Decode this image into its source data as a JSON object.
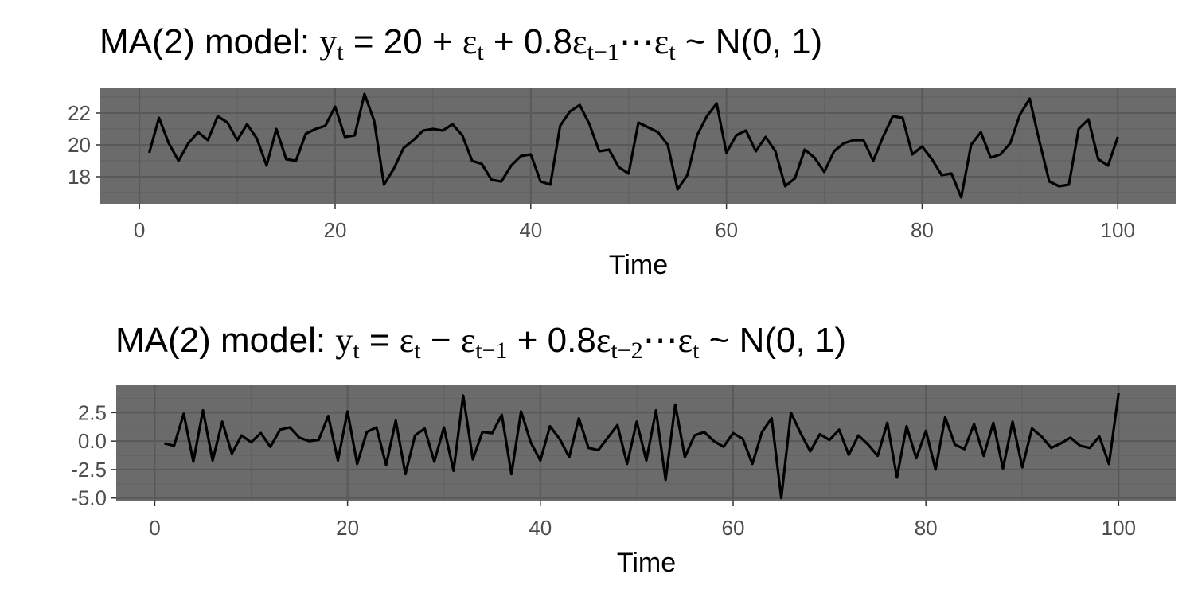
{
  "chart_data": [
    {
      "type": "line",
      "title_parts": {
        "prefix": "MA(2) model: ",
        "y": "y",
        "y_sub": "t",
        "rhs1": " = 20 + ",
        "e1": "ε",
        "e1_sub": "t",
        "rhs2": " + 0.8",
        "e2": "ε",
        "e2_sub": "t−1",
        "dots": "⋯",
        "e3": "ε",
        "e3_sub": "t",
        "dist": " ~ N(0, 1)"
      },
      "xlabel": "Time",
      "ylabel": "",
      "xlim": [
        -4,
        106
      ],
      "ylim": [
        16.3,
        23.6
      ],
      "x_ticks": [
        0,
        20,
        40,
        60,
        80,
        100
      ],
      "x_tick_labels": [
        "0",
        "20",
        "40",
        "60",
        "80",
        "100"
      ],
      "y_ticks": [
        18,
        20,
        22
      ],
      "y_tick_labels": [
        "18",
        "20",
        "22"
      ],
      "grid": true,
      "panel_color": "#6b6b6b",
      "line_color": "#000000",
      "x": [
        1,
        2,
        3,
        4,
        5,
        6,
        7,
        8,
        9,
        10,
        11,
        12,
        13,
        14,
        15,
        16,
        17,
        18,
        19,
        20,
        21,
        22,
        23,
        24,
        25,
        26,
        27,
        28,
        29,
        30,
        31,
        32,
        33,
        34,
        35,
        36,
        37,
        38,
        39,
        40,
        41,
        42,
        43,
        44,
        45,
        46,
        47,
        48,
        49,
        50,
        51,
        52,
        53,
        54,
        55,
        56,
        57,
        58,
        59,
        60,
        61,
        62,
        63,
        64,
        65,
        66,
        67,
        68,
        69,
        70,
        71,
        72,
        73,
        74,
        75,
        76,
        77,
        78,
        79,
        80,
        81,
        82,
        83,
        84,
        85,
        86,
        87,
        88,
        89,
        90,
        91,
        92,
        93,
        94,
        95,
        96,
        97,
        98,
        99,
        100
      ],
      "values": [
        19.5,
        21.7,
        20.1,
        19.0,
        20.1,
        20.8,
        20.3,
        21.8,
        21.4,
        20.3,
        21.3,
        20.4,
        18.7,
        21.0,
        19.1,
        19.0,
        20.7,
        21.0,
        21.2,
        22.4,
        20.5,
        20.6,
        23.2,
        21.5,
        17.5,
        18.5,
        19.8,
        20.3,
        20.9,
        21.0,
        20.9,
        21.3,
        20.6,
        19.0,
        18.8,
        17.8,
        17.7,
        18.7,
        19.3,
        19.4,
        17.7,
        17.5,
        21.2,
        22.1,
        22.5,
        21.3,
        19.6,
        19.7,
        18.6,
        18.2,
        21.4,
        21.1,
        20.8,
        20.0,
        17.2,
        18.1,
        20.6,
        21.8,
        22.6,
        19.5,
        20.6,
        20.9,
        19.6,
        20.5,
        19.6,
        17.4,
        17.9,
        19.7,
        19.2,
        18.3,
        19.6,
        20.1,
        20.3,
        20.3,
        19.0,
        20.5,
        21.8,
        21.7,
        19.4,
        19.9,
        19.1,
        18.1,
        18.2,
        16.7,
        20.0,
        20.8,
        19.2,
        19.4,
        20.1,
        21.9,
        22.9,
        20.2,
        17.7,
        17.4,
        17.5,
        21.0,
        21.6,
        19.1,
        18.7,
        20.5
      ]
    },
    {
      "type": "line",
      "title_parts": {
        "prefix": "MA(2) model:  ",
        "y": "y",
        "y_sub": "t",
        "rhs1": " = ",
        "e1": "ε",
        "e1_sub": "t",
        "rhs2": " − ",
        "e2": "ε",
        "e2_sub": "t−1",
        "rhs3": " + 0.8",
        "e3": "ε",
        "e3_sub": "t−2",
        "dots": "⋯",
        "e4": "ε",
        "e4_sub": "t",
        "dist": " ~ N(0, 1)"
      },
      "xlabel": "Time",
      "ylabel": "",
      "xlim": [
        -4,
        106
      ],
      "ylim": [
        -5.3,
        4.9
      ],
      "x_ticks": [
        0,
        20,
        40,
        60,
        80,
        100
      ],
      "x_tick_labels": [
        "0",
        "20",
        "40",
        "60",
        "80",
        "100"
      ],
      "y_ticks": [
        2.5,
        0.0,
        -2.5,
        -5.0
      ],
      "y_tick_labels": [
        "2.5",
        "0.0",
        "-2.5",
        "-5.0"
      ],
      "grid": true,
      "panel_color": "#6b6b6b",
      "line_color": "#000000",
      "x": [
        1,
        2,
        3,
        4,
        5,
        6,
        7,
        8,
        9,
        10,
        11,
        12,
        13,
        14,
        15,
        16,
        17,
        18,
        19,
        20,
        21,
        22,
        23,
        24,
        25,
        26,
        27,
        28,
        29,
        30,
        31,
        32,
        33,
        34,
        35,
        36,
        37,
        38,
        39,
        40,
        41,
        42,
        43,
        44,
        45,
        46,
        47,
        48,
        49,
        50,
        51,
        52,
        53,
        54,
        55,
        56,
        57,
        58,
        59,
        60,
        61,
        62,
        63,
        64,
        65,
        66,
        67,
        68,
        69,
        70,
        71,
        72,
        73,
        74,
        75,
        76,
        77,
        78,
        79,
        80,
        81,
        82,
        83,
        84,
        85,
        86,
        87,
        88,
        89,
        90,
        91,
        92,
        93,
        94,
        95,
        96,
        97,
        98,
        99,
        100
      ],
      "values": [
        -0.2,
        -0.4,
        2.4,
        -1.8,
        2.7,
        -1.7,
        1.7,
        -1.1,
        0.5,
        -0.1,
        0.7,
        -0.5,
        1.0,
        1.2,
        0.3,
        0.0,
        0.1,
        2.2,
        -1.7,
        2.6,
        -2.0,
        0.8,
        1.2,
        -2.1,
        1.8,
        -2.9,
        0.5,
        1.1,
        -1.8,
        1.2,
        -2.6,
        4.0,
        -1.6,
        0.8,
        0.7,
        2.3,
        -2.9,
        2.6,
        -0.1,
        -1.7,
        1.3,
        0.2,
        -1.4,
        2.0,
        -0.6,
        -0.8,
        0.3,
        1.4,
        -2.0,
        1.7,
        -1.7,
        2.7,
        -3.4,
        3.2,
        -1.4,
        0.5,
        0.8,
        0.0,
        -0.5,
        0.7,
        0.2,
        -2.0,
        0.8,
        2.0,
        -5.0,
        2.5,
        0.7,
        -0.9,
        0.6,
        0.1,
        1.0,
        -1.2,
        0.5,
        -0.3,
        -1.3,
        1.6,
        -3.2,
        1.3,
        -1.5,
        0.9,
        -2.5,
        2.1,
        -0.3,
        -0.7,
        1.5,
        -1.3,
        1.6,
        -2.4,
        1.7,
        -2.3,
        1.1,
        0.4,
        -0.6,
        -0.2,
        0.3,
        -0.4,
        -0.6,
        0.4,
        -2.0,
        4.2
      ]
    }
  ]
}
